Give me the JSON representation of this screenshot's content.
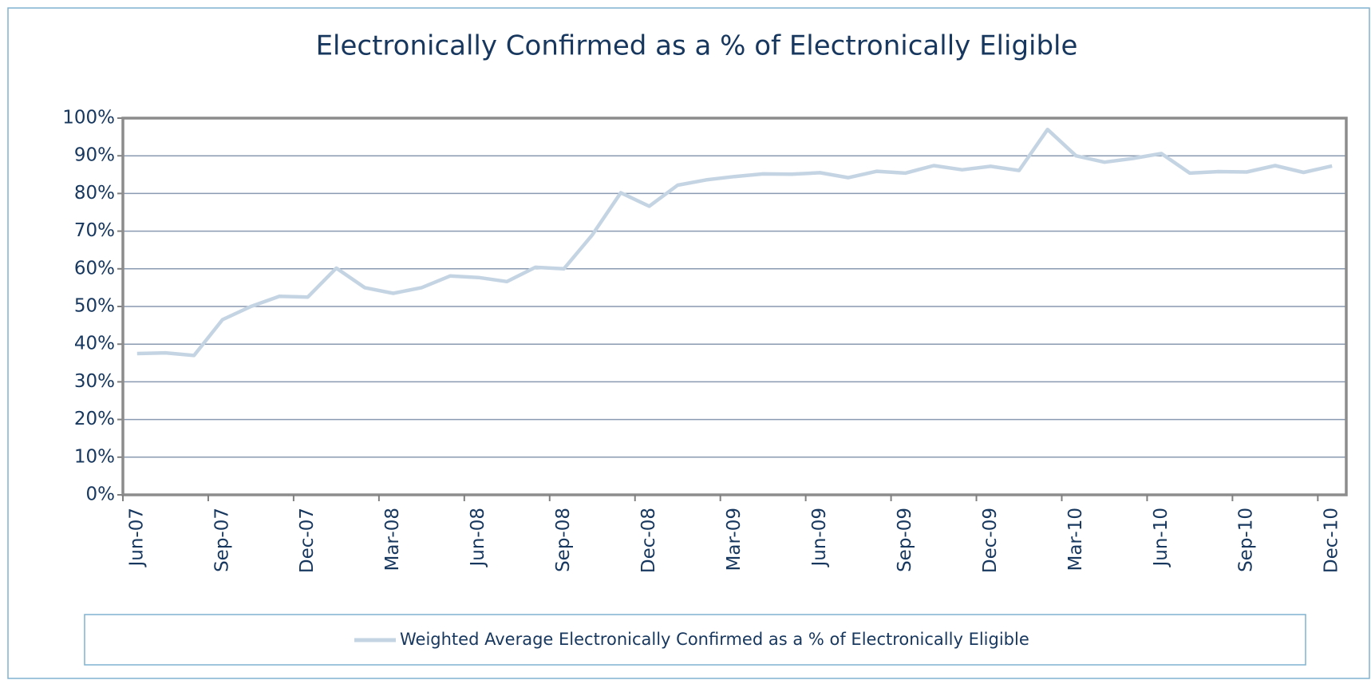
{
  "chart_data": {
    "type": "line",
    "title": "Electronically Confirmed as a % of Electronically Eligible",
    "categories": [
      "Jun-07",
      null,
      null,
      "Sep-07",
      null,
      null,
      "Dec-07",
      null,
      null,
      "Mar-08",
      null,
      null,
      "Jun-08",
      null,
      null,
      "Sep-08",
      null,
      null,
      "Dec-08",
      null,
      null,
      "Mar-09",
      null,
      null,
      "Jun-09",
      null,
      null,
      "Sep-09",
      null,
      null,
      "Dec-09",
      null,
      null,
      "Mar-10",
      null,
      null,
      "Jun-10",
      null,
      null,
      "Sep-10",
      null,
      null,
      "Dec-10"
    ],
    "series": [
      {
        "name": "Weighted Average Electronically Confirmed as a % of Electronically Eligible",
        "color": "#c5d4e3",
        "values": [
          37.5,
          37.7,
          37.0,
          46.5,
          50.0,
          52.7,
          52.5,
          60.2,
          55.0,
          53.5,
          55.0,
          58.1,
          57.7,
          56.6,
          60.4,
          60.0,
          69.0,
          80.2,
          76.6,
          82.2,
          83.6,
          84.5,
          85.2,
          85.1,
          85.5,
          84.2,
          85.9,
          85.4,
          87.4,
          86.3,
          87.2,
          86.1,
          97.0,
          90.0,
          88.3,
          89.3,
          90.6,
          85.4,
          85.8,
          85.7,
          87.4,
          85.6,
          87.3
        ]
      }
    ],
    "ylim": [
      0,
      100
    ],
    "yticks": [
      {
        "value": 0,
        "label": "0%"
      },
      {
        "value": 10,
        "label": "10%"
      },
      {
        "value": 20,
        "label": "20%"
      },
      {
        "value": 30,
        "label": "30%"
      },
      {
        "value": 40,
        "label": "40%"
      },
      {
        "value": 50,
        "label": "50%"
      },
      {
        "value": 60,
        "label": "60%"
      },
      {
        "value": 70,
        "label": "70%"
      },
      {
        "value": 80,
        "label": "80%"
      },
      {
        "value": 90,
        "label": "90%"
      },
      {
        "value": 100,
        "label": "100%"
      }
    ],
    "grid": true,
    "legend": "bottom"
  }
}
